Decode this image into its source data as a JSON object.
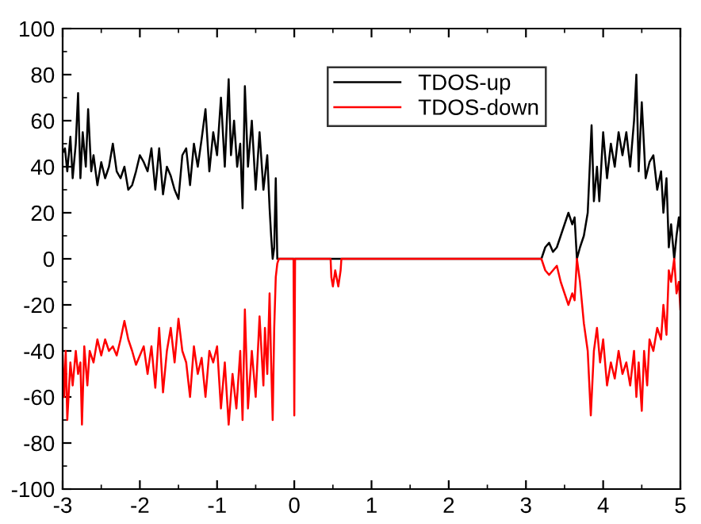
{
  "chart_data": {
    "type": "line",
    "xlim": [
      -3,
      5
    ],
    "ylim": [
      -100,
      100
    ],
    "xticks": [
      -3,
      -2,
      -1,
      0,
      1,
      2,
      3,
      4,
      5
    ],
    "yticks": [
      -100,
      -80,
      -60,
      -40,
      -20,
      0,
      20,
      40,
      60,
      80,
      100
    ],
    "grid": false,
    "legend": "top right",
    "series": [
      {
        "name": "TDOS-up",
        "color": "#000000",
        "x": [
          -3.0,
          -2.97,
          -2.94,
          -2.9,
          -2.87,
          -2.83,
          -2.8,
          -2.77,
          -2.74,
          -2.7,
          -2.67,
          -2.63,
          -2.6,
          -2.55,
          -2.5,
          -2.45,
          -2.4,
          -2.35,
          -2.3,
          -2.25,
          -2.2,
          -2.15,
          -2.1,
          -2.05,
          -2.0,
          -1.95,
          -1.9,
          -1.85,
          -1.8,
          -1.75,
          -1.7,
          -1.65,
          -1.6,
          -1.55,
          -1.5,
          -1.45,
          -1.4,
          -1.35,
          -1.3,
          -1.25,
          -1.2,
          -1.15,
          -1.1,
          -1.05,
          -1.0,
          -0.95,
          -0.9,
          -0.85,
          -0.82,
          -0.78,
          -0.74,
          -0.7,
          -0.67,
          -0.64,
          -0.6,
          -0.55,
          -0.5,
          -0.45,
          -0.4,
          -0.35,
          -0.32,
          -0.3,
          -0.28,
          -0.26,
          -0.24,
          -0.22,
          -0.2,
          0.5,
          1,
          2,
          3,
          3.2,
          3.25,
          3.3,
          3.35,
          3.4,
          3.45,
          3.5,
          3.55,
          3.6,
          3.63,
          3.66,
          3.7,
          3.75,
          3.8,
          3.85,
          3.88,
          3.92,
          3.95,
          4.0,
          4.05,
          4.1,
          4.15,
          4.2,
          4.25,
          4.3,
          4.35,
          4.4,
          4.43,
          4.46,
          4.5,
          4.55,
          4.6,
          4.65,
          4.7,
          4.75,
          4.78,
          4.82,
          4.85,
          4.88,
          4.92,
          4.95,
          4.98,
          5.0
        ],
        "values": [
          46,
          48,
          38,
          53,
          35,
          50,
          72,
          35,
          55,
          40,
          65,
          38,
          45,
          32,
          42,
          35,
          40,
          50,
          38,
          35,
          40,
          30,
          32,
          38,
          45,
          42,
          38,
          48,
          30,
          48,
          28,
          40,
          36,
          30,
          26,
          45,
          48,
          32,
          50,
          40,
          52,
          65,
          38,
          55,
          45,
          70,
          40,
          78,
          45,
          60,
          40,
          50,
          22,
          75,
          40,
          60,
          30,
          55,
          30,
          45,
          22,
          10,
          0,
          5,
          35,
          0,
          0,
          0,
          0,
          0,
          0,
          0,
          5,
          7,
          3,
          5,
          10,
          15,
          20,
          15,
          18,
          0,
          5,
          10,
          20,
          58,
          25,
          40,
          25,
          55,
          35,
          50,
          40,
          55,
          45,
          55,
          40,
          60,
          80,
          38,
          68,
          35,
          42,
          45,
          30,
          38,
          20,
          35,
          5,
          15,
          0,
          10,
          18,
          12
        ]
      },
      {
        "name": "TDOS-down",
        "color": "#ff0000",
        "x": [
          -3.0,
          -2.98,
          -2.96,
          -2.94,
          -2.9,
          -2.87,
          -2.83,
          -2.8,
          -2.77,
          -2.75,
          -2.72,
          -2.68,
          -2.65,
          -2.6,
          -2.55,
          -2.5,
          -2.45,
          -2.4,
          -2.35,
          -2.3,
          -2.25,
          -2.2,
          -2.15,
          -2.1,
          -2.05,
          -2.0,
          -1.95,
          -1.9,
          -1.85,
          -1.8,
          -1.75,
          -1.7,
          -1.65,
          -1.6,
          -1.55,
          -1.5,
          -1.45,
          -1.4,
          -1.35,
          -1.3,
          -1.25,
          -1.2,
          -1.15,
          -1.1,
          -1.05,
          -1.0,
          -0.95,
          -0.9,
          -0.85,
          -0.8,
          -0.75,
          -0.7,
          -0.67,
          -0.64,
          -0.6,
          -0.55,
          -0.5,
          -0.45,
          -0.4,
          -0.38,
          -0.35,
          -0.32,
          -0.3,
          -0.28,
          -0.26,
          -0.24,
          -0.22,
          -0.2,
          -0.01,
          0.0,
          0.01,
          0.47,
          0.48,
          0.5,
          0.53,
          0.57,
          0.6,
          0.61,
          3.2,
          3.25,
          3.3,
          3.35,
          3.4,
          3.45,
          3.5,
          3.55,
          3.6,
          3.63,
          3.66,
          3.7,
          3.75,
          3.8,
          3.84,
          3.88,
          3.92,
          3.96,
          4.0,
          4.05,
          4.1,
          4.15,
          4.2,
          4.25,
          4.3,
          4.35,
          4.4,
          4.43,
          4.46,
          4.5,
          4.53,
          4.57,
          4.6,
          4.65,
          4.7,
          4.75,
          4.78,
          4.82,
          4.85,
          4.88,
          4.92,
          4.95,
          4.98,
          5.0
        ],
        "values": [
          -42,
          -60,
          -40,
          -70,
          -45,
          -55,
          -40,
          -50,
          -45,
          -72,
          -38,
          -55,
          -40,
          -45,
          -35,
          -42,
          -35,
          -40,
          -38,
          -42,
          -35,
          -27,
          -35,
          -40,
          -46,
          -42,
          -38,
          -50,
          -38,
          -56,
          -30,
          -58,
          -40,
          -30,
          -45,
          -26,
          -40,
          -45,
          -60,
          -38,
          -50,
          -43,
          -60,
          -40,
          -45,
          -38,
          -65,
          -45,
          -72,
          -50,
          -65,
          -40,
          -70,
          -22,
          -65,
          -40,
          -60,
          -25,
          -55,
          -30,
          -50,
          -15,
          -45,
          -70,
          -30,
          -8,
          -2,
          0,
          0,
          -68,
          0,
          0,
          -8,
          -12,
          -5,
          -12,
          -5,
          0,
          0,
          -5,
          -7,
          -5,
          -3,
          -10,
          -15,
          -20,
          -15,
          -18,
          0,
          -10,
          -28,
          -40,
          -68,
          -40,
          -30,
          -45,
          -35,
          -55,
          -45,
          -52,
          -40,
          -50,
          -45,
          -55,
          -40,
          -60,
          -45,
          -66,
          -40,
          -55,
          -35,
          -40,
          -30,
          -35,
          -20,
          -33,
          -5,
          -10,
          0,
          -15,
          -10,
          -22
        ]
      }
    ]
  }
}
